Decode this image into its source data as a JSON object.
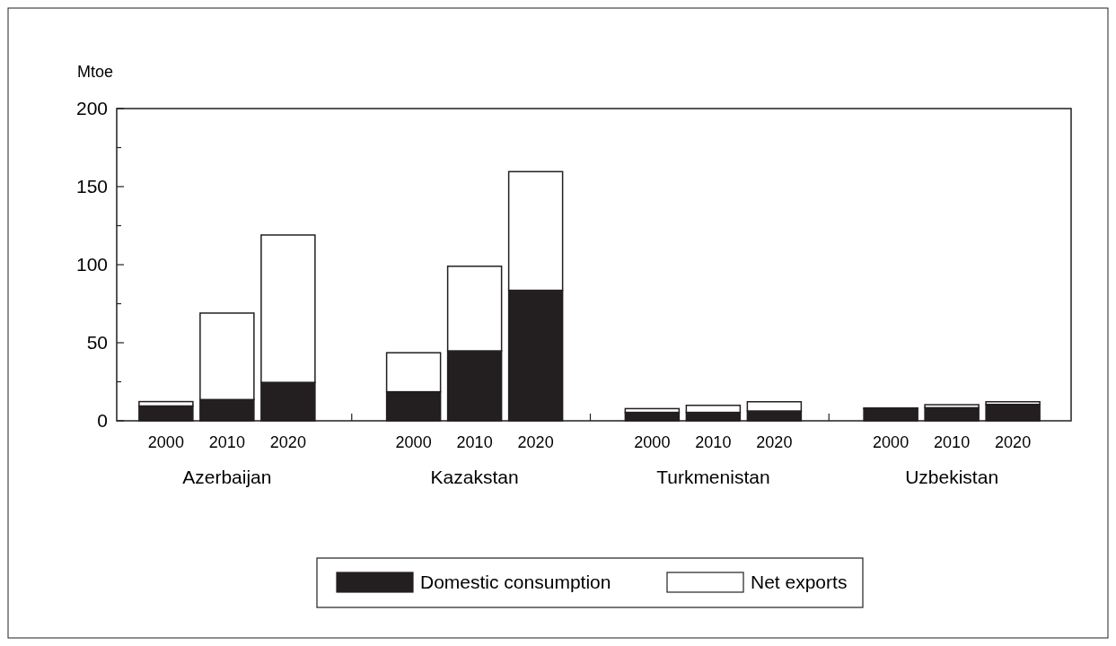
{
  "chart_data": {
    "type": "bar",
    "stacked": true,
    "ylabel": "Mtoe",
    "categories": [
      "2000",
      "2010",
      "2020",
      "2000",
      "2010",
      "2020",
      "2000",
      "2010",
      "2020",
      "2000",
      "2010",
      "2020"
    ],
    "annotations": [
      "Azerbaijan",
      "Kazakstan",
      "Turkmenistan",
      "Uzbekistan"
    ],
    "series": [
      {
        "name": "Domestic consumption",
        "color": "#231f20",
        "values": [
          9.5,
          13.6,
          24.6,
          18.6,
          44.8,
          83.6,
          5.4,
          5.4,
          6.3,
          7.8,
          8.4,
          10.5
        ]
      },
      {
        "name": "Net exports",
        "color": "#ffffff",
        "values": [
          2.8,
          55.4,
          94.4,
          25,
          54.2,
          76,
          2.4,
          4.5,
          5.9,
          0.4,
          1.9,
          1.7
        ]
      }
    ],
    "ylim": [
      0,
      200
    ],
    "yticks": [
      0,
      {
        "value": 25,
        "label": null
      },
      50,
      {
        "value": 75,
        "label": null
      },
      100,
      {
        "value": 125,
        "label": null
      },
      150,
      {
        "value": 175,
        "label": null
      },
      200
    ],
    "grid": false,
    "legend": "bottom"
  }
}
